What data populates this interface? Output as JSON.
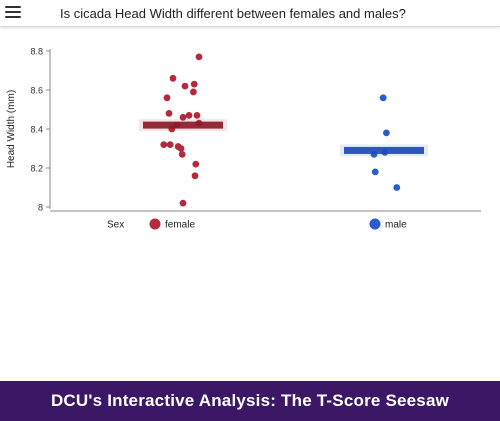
{
  "header": {
    "question": "Is cicada Head Width different between females and males?"
  },
  "footer": {
    "title": "DCU's Interactive Analysis: The T-Score Seesaw"
  },
  "chart_data": {
    "type": "scatter",
    "ylabel": "Head Width (mm)",
    "ylim": [
      8.0,
      8.8
    ],
    "yticks": [
      8,
      8.2,
      8.4,
      8.6,
      8.8
    ],
    "ytick_labels": [
      "8",
      "8.2",
      "8.4",
      "8.6",
      "8.8"
    ],
    "legend_title": "Sex",
    "legend_placement": "bottom",
    "grid": false,
    "series": [
      {
        "name": "female",
        "color": "#b22a3c",
        "mean_color": "#8a1a2a",
        "mean": 8.42,
        "values": [
          8.77,
          8.66,
          8.63,
          8.62,
          8.59,
          8.56,
          8.48,
          8.47,
          8.47,
          8.46,
          8.43,
          8.42,
          8.4,
          8.32,
          8.32,
          8.31,
          8.3,
          8.27,
          8.22,
          8.16,
          8.02
        ],
        "jitter": [
          0.4,
          -0.25,
          0.28,
          0.05,
          0.26,
          -0.4,
          -0.35,
          0.35,
          0.15,
          0.0,
          0.4,
          -0.15,
          -0.28,
          -0.48,
          -0.32,
          -0.12,
          -0.05,
          -0.02,
          0.32,
          0.3,
          0.0
        ]
      },
      {
        "name": "male",
        "color": "#2a5cd0",
        "mean_color": "#1e4ab8",
        "mean": 8.29,
        "values": [
          8.56,
          8.38,
          8.28,
          8.27,
          8.18,
          8.1
        ],
        "jitter": [
          -0.02,
          0.06,
          0.02,
          -0.25,
          -0.22,
          0.32
        ]
      }
    ]
  }
}
